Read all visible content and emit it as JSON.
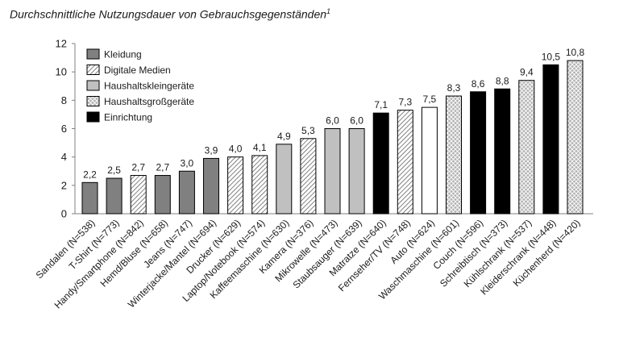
{
  "title": "Durchschnittliche Nutzungsdauer von Gebrauchsgegenständen",
  "title_footnote": "1",
  "chart_data": {
    "type": "bar",
    "title": "Durchschnittliche Nutzungsdauer von Gebrauchsgegenständen",
    "xlabel": "",
    "ylabel": "",
    "ylim": [
      0,
      12
    ],
    "yticks": [
      "0",
      "2",
      "4",
      "6",
      "8",
      "10",
      "12"
    ],
    "grid": false,
    "legend_position": "top-left",
    "legend": [
      {
        "name": "Kleidung",
        "pattern": "solid-darkgray"
      },
      {
        "name": "Digitale Medien",
        "pattern": "diagonal-hatch"
      },
      {
        "name": "Haushaltskleingeräte",
        "pattern": "solid-lightgray"
      },
      {
        "name": "Haushaltsgroßgeräte",
        "pattern": "crosshatch-gray"
      },
      {
        "name": "Einrichtung",
        "pattern": "solid-black"
      }
    ],
    "categories": [
      "Sandalen (N=538)",
      "T-Shirt (N=773)",
      "Handy/Smartphone (N=842)",
      "Hemd/Bluse (N=658)",
      "Jeans (N=747)",
      "Winterjacke/Mantel (N=694)",
      "Drucker (N=629)",
      "Laptop/Notebook (N=574)",
      "Kaffeemaschine (N=630)",
      "Kamera (N=376)",
      "Mikrowelle (N=473)",
      "Staubsauger (N=639)",
      "Matratze (N=640)",
      "Fernseher/TV (N=748)",
      "Auto (N=624)",
      "Waschmaschine (N=601)",
      "Couch (N=596)",
      "Schreibtisch (N=373)",
      "Kühlschrank (N=537)",
      "Kleiderschrank (N=448)",
      "Küchenherd (N=420)"
    ],
    "values": [
      2.2,
      2.5,
      2.7,
      2.7,
      3.0,
      3.9,
      4.0,
      4.1,
      4.9,
      5.3,
      6.0,
      6.0,
      7.1,
      7.3,
      7.5,
      8.3,
      8.6,
      8.8,
      9.4,
      10.5,
      10.8
    ],
    "value_labels": [
      "2,2",
      "2,5",
      "2,7",
      "2,7",
      "3,0",
      "3,9",
      "4,0",
      "4,1",
      "4,9",
      "5,3",
      "6,0",
      "6,0",
      "7,1",
      "7,3",
      "7,5",
      "8,3",
      "8,6",
      "8,8",
      "9,4",
      "10,5",
      "10,8"
    ],
    "patterns": [
      "solid-darkgray",
      "solid-darkgray",
      "diagonal-hatch",
      "solid-darkgray",
      "solid-darkgray",
      "solid-darkgray",
      "diagonal-hatch",
      "diagonal-hatch",
      "solid-lightgray",
      "diagonal-hatch",
      "solid-lightgray",
      "solid-lightgray",
      "solid-black",
      "diagonal-hatch",
      "white",
      "crosshatch-gray",
      "solid-black",
      "solid-black",
      "crosshatch-gray",
      "solid-black",
      "crosshatch-gray"
    ]
  },
  "colors": {
    "solid-darkgray": "#808080",
    "solid-lightgray": "#c0c0c0",
    "solid-black": "#000000",
    "white": "#ffffff",
    "hatch-line": "#4d4d4d",
    "crosshatch-bg": "#a6a6a6",
    "axis": "#808080",
    "text": "#1a1a1a"
  }
}
